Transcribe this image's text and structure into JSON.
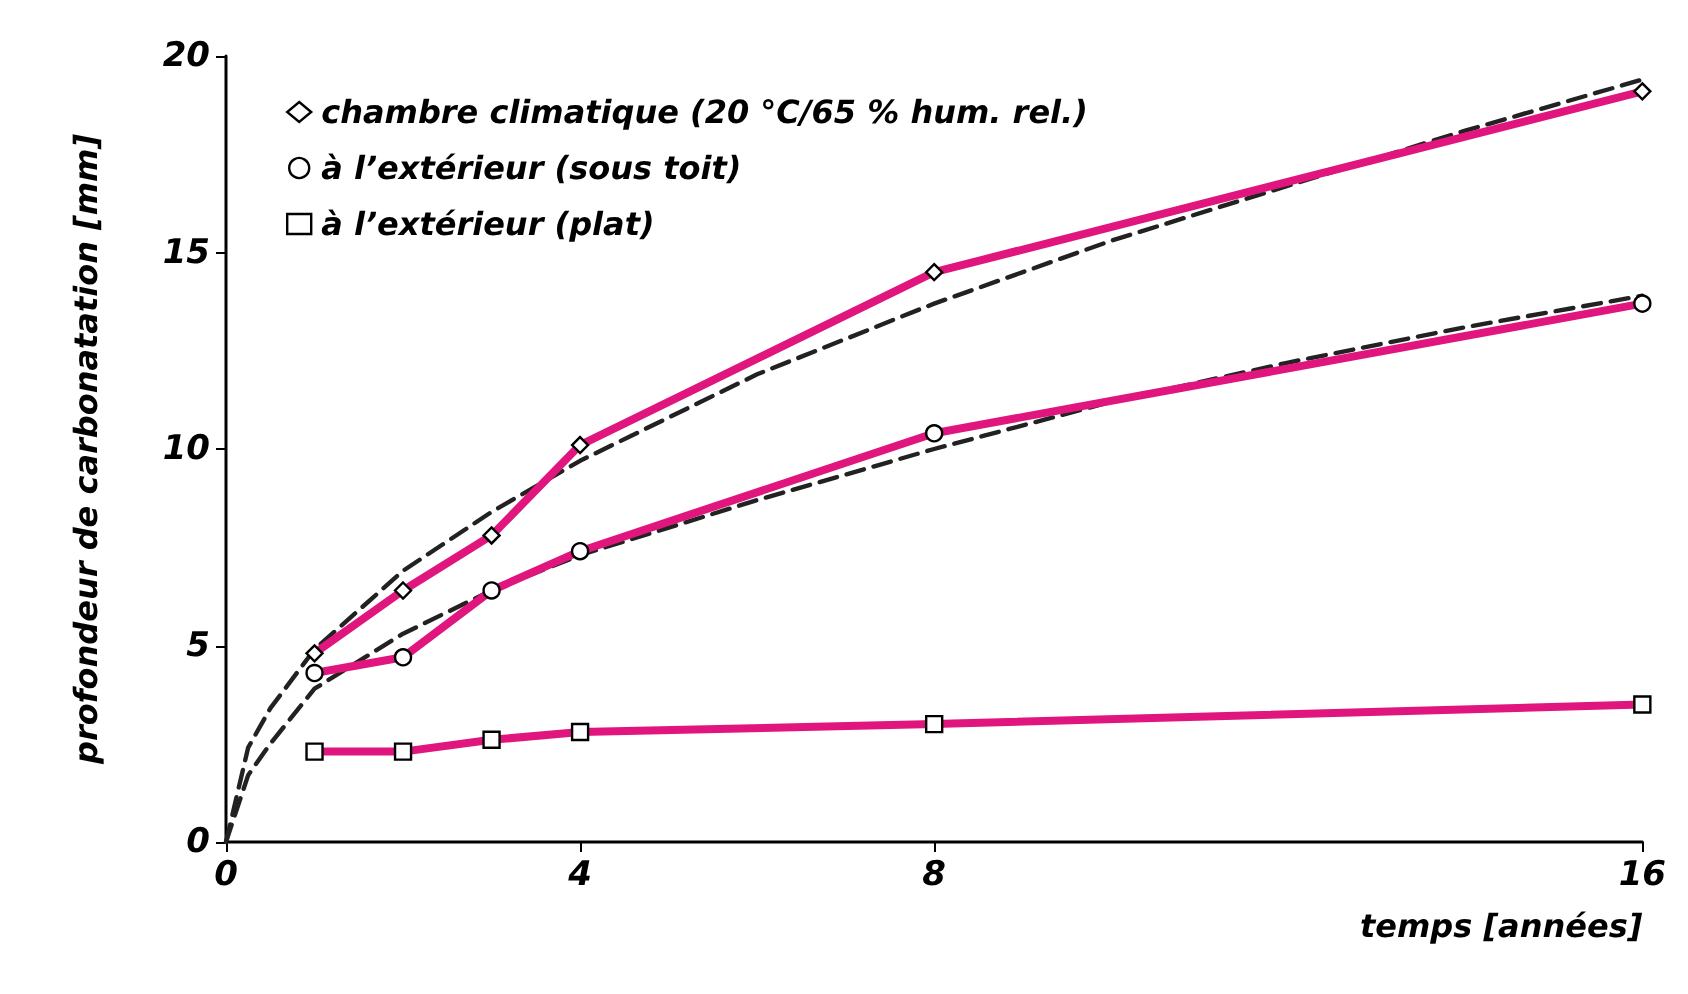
{
  "chart_data": {
    "type": "line",
    "xlabel": "temps [années]",
    "ylabel": "profondeur de carbonatation [mm]",
    "xlim": [
      0,
      16
    ],
    "xticks": [
      0,
      4,
      8,
      16
    ],
    "ylim": [
      0,
      20
    ],
    "yticks": [
      0,
      5,
      10,
      15,
      20
    ],
    "grid": false,
    "legend": "top left",
    "line_style": "solid",
    "series": [
      {
        "name": "chambre climatique (20 °C/65 % hum. rel.)",
        "color": "#e0167e",
        "marker": "diamond",
        "x": [
          1,
          2,
          3,
          4,
          8,
          16
        ],
        "values": [
          4.8,
          6.4,
          7.8,
          10.1,
          14.5,
          19.1
        ]
      },
      {
        "name": "à l’extérieur (sous toit)",
        "color": "#e0167e",
        "marker": "circle",
        "x": [
          1,
          2,
          3,
          4,
          8,
          16
        ],
        "values": [
          4.3,
          4.7,
          6.4,
          7.4,
          10.4,
          13.7
        ]
      },
      {
        "name": "à l’extérieur (plat)",
        "color": "#e0167e",
        "marker": "square",
        "x": [
          1,
          2,
          3,
          4,
          8,
          16
        ],
        "values": [
          2.3,
          2.3,
          2.6,
          2.8,
          3.0,
          3.5
        ]
      },
      {
        "color": "#222222",
        "marker": "none",
        "line_style": "dashed",
        "x": [
          0,
          0.25,
          0.5,
          1,
          2,
          3,
          4,
          6,
          8,
          10,
          14,
          16
        ],
        "values": [
          0,
          2.4,
          3.4,
          4.9,
          6.9,
          8.4,
          9.7,
          11.9,
          13.7,
          15.3,
          18.1,
          19.4
        ]
      },
      {
        "color": "#222222",
        "marker": "none",
        "line_style": "dashed",
        "x": [
          0,
          0.25,
          0.5,
          1,
          2,
          3,
          4,
          6,
          8,
          10,
          12,
          14,
          16
        ],
        "values": [
          0,
          1.7,
          2.5,
          3.9,
          5.3,
          6.4,
          7.3,
          8.7,
          10,
          11.2,
          12.2,
          13.1,
          13.9
        ]
      }
    ]
  }
}
